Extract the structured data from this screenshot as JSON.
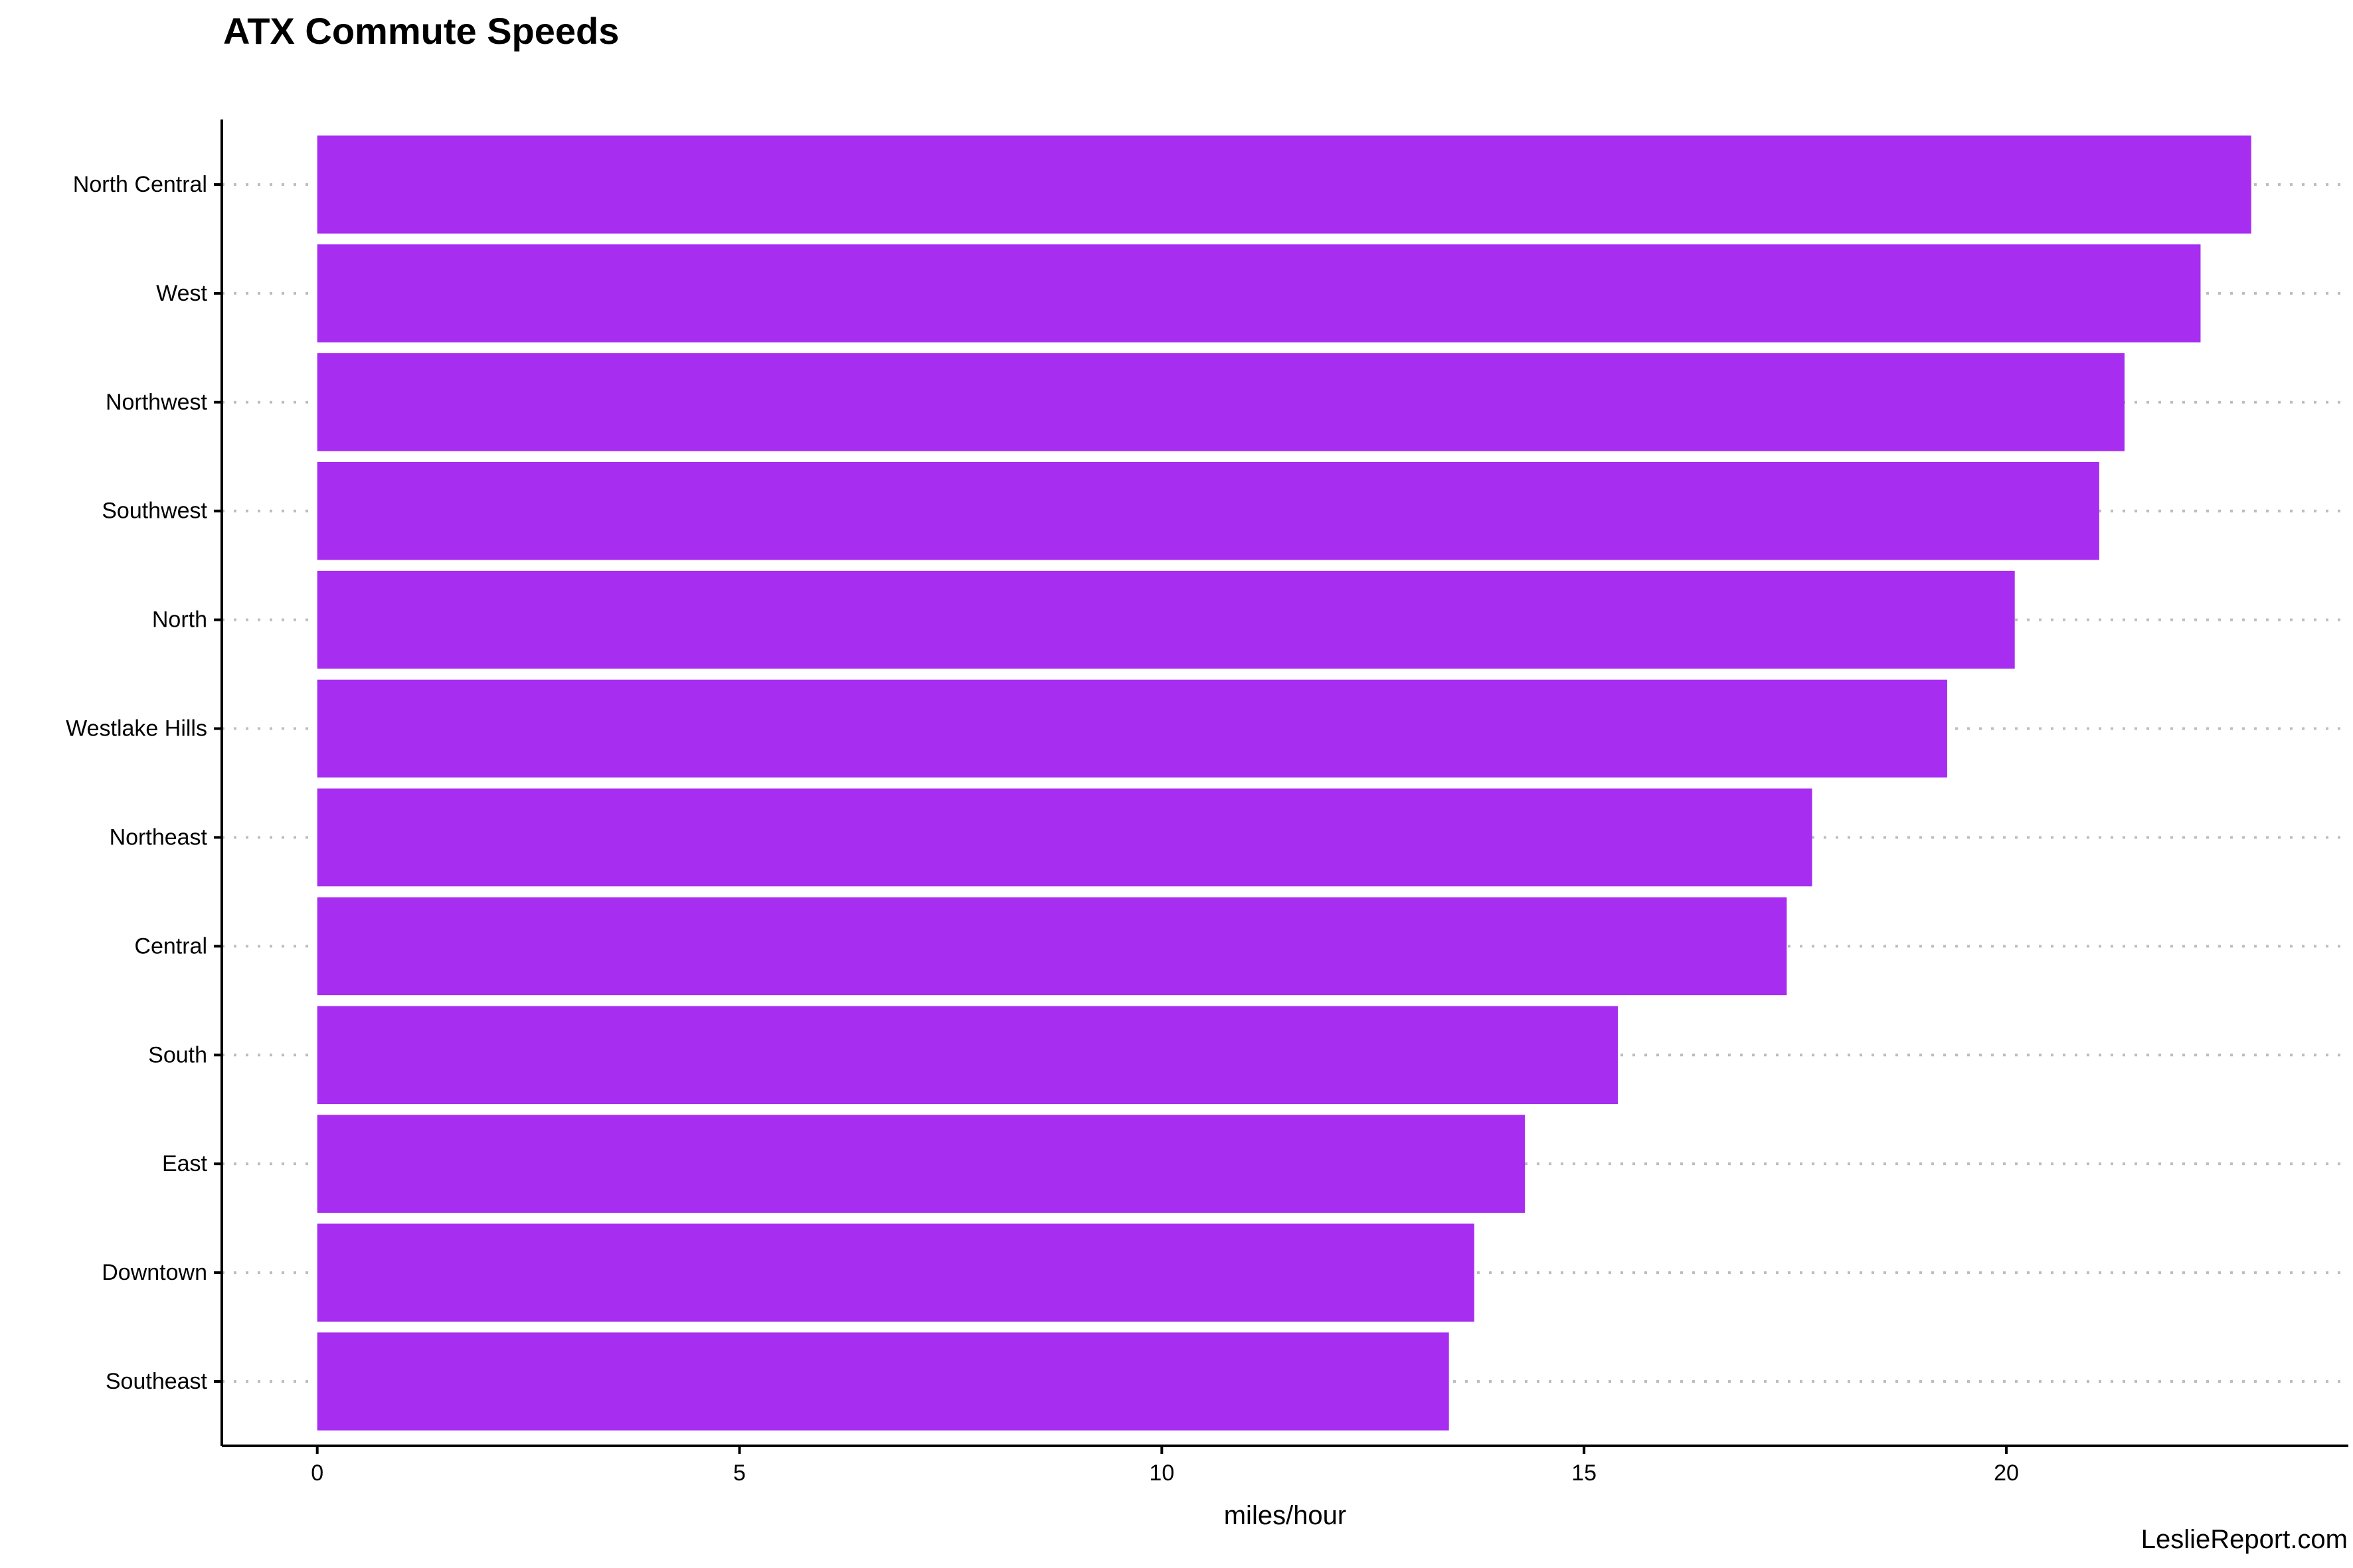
{
  "chart_data": {
    "type": "bar",
    "orientation": "horizontal",
    "title": "ATX Commute Speeds",
    "xlabel": "miles/hour",
    "ylabel": "",
    "caption": "LeslieReport.com",
    "bar_color": "#A72DF0",
    "grid": "dotted horizontal major lines",
    "legend": "none",
    "xlim": [
      -1.13,
      24.05
    ],
    "x_ticks": [
      0,
      5,
      10,
      15,
      20
    ],
    "categories": [
      "North Central",
      "West",
      "Northwest",
      "Southwest",
      "North",
      "Westlake Hills",
      "Northeast",
      "Central",
      "South",
      "East",
      "Downtown",
      "Southeast"
    ],
    "values": [
      22.9,
      22.3,
      21.4,
      21.1,
      20.1,
      19.3,
      17.7,
      17.4,
      15.4,
      14.3,
      13.7,
      13.4
    ]
  }
}
